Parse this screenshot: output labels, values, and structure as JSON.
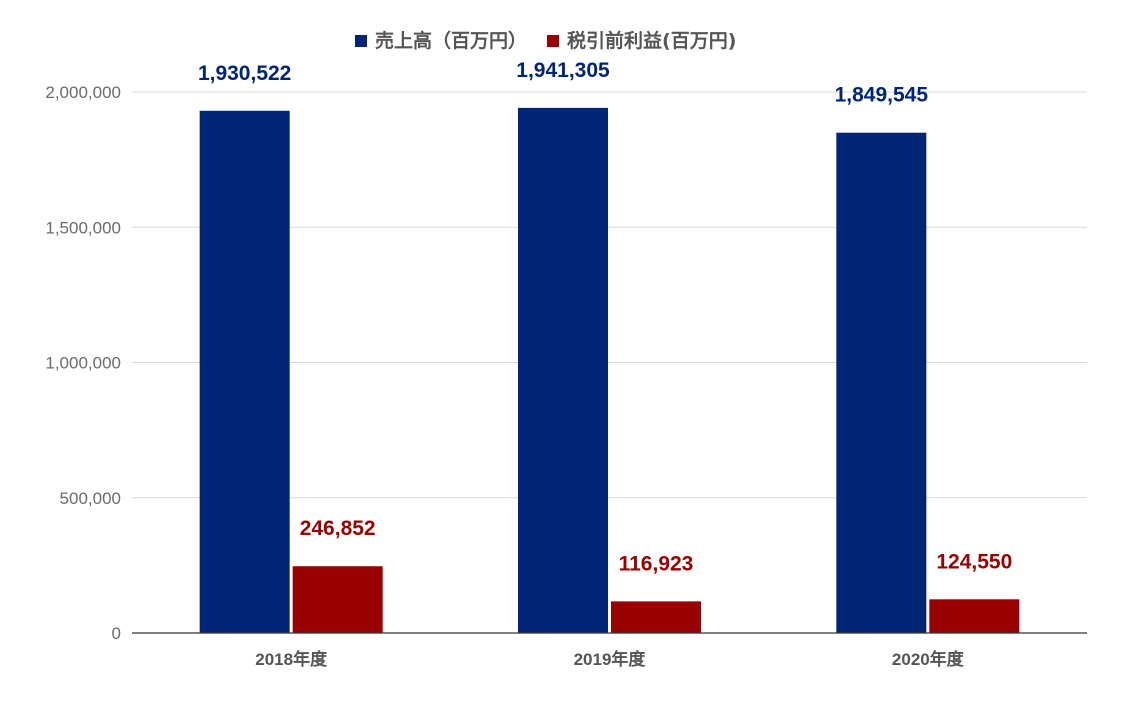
{
  "chart_data": {
    "type": "bar",
    "title": "",
    "xlabel": "",
    "ylabel": "",
    "categories": [
      "2018年度",
      "2019年度",
      "2020年度"
    ],
    "series": [
      {
        "name": "売上高（百万円）",
        "color": "#002577",
        "values": [
          1930522,
          1941305,
          1849545
        ]
      },
      {
        "name": "税引前利益(百万円)",
        "color": "#990000",
        "values": [
          246852,
          116923,
          124550
        ]
      }
    ],
    "value_labels": [
      [
        "1,930,522",
        "1,941,305",
        "1,849,545"
      ],
      [
        "246,852",
        "116,923",
        "124,550"
      ]
    ],
    "ylim": [
      0,
      2000000
    ],
    "yticks": [
      0,
      500000,
      1000000,
      1500000,
      2000000
    ],
    "ytick_labels": [
      "0",
      "500,000",
      "1,000,000",
      "1,500,000",
      "2,000,000"
    ],
    "grid": true,
    "legend_position": "top-center",
    "colors": {
      "gridline": "#d9d9d9",
      "baseline": "#333333"
    }
  }
}
